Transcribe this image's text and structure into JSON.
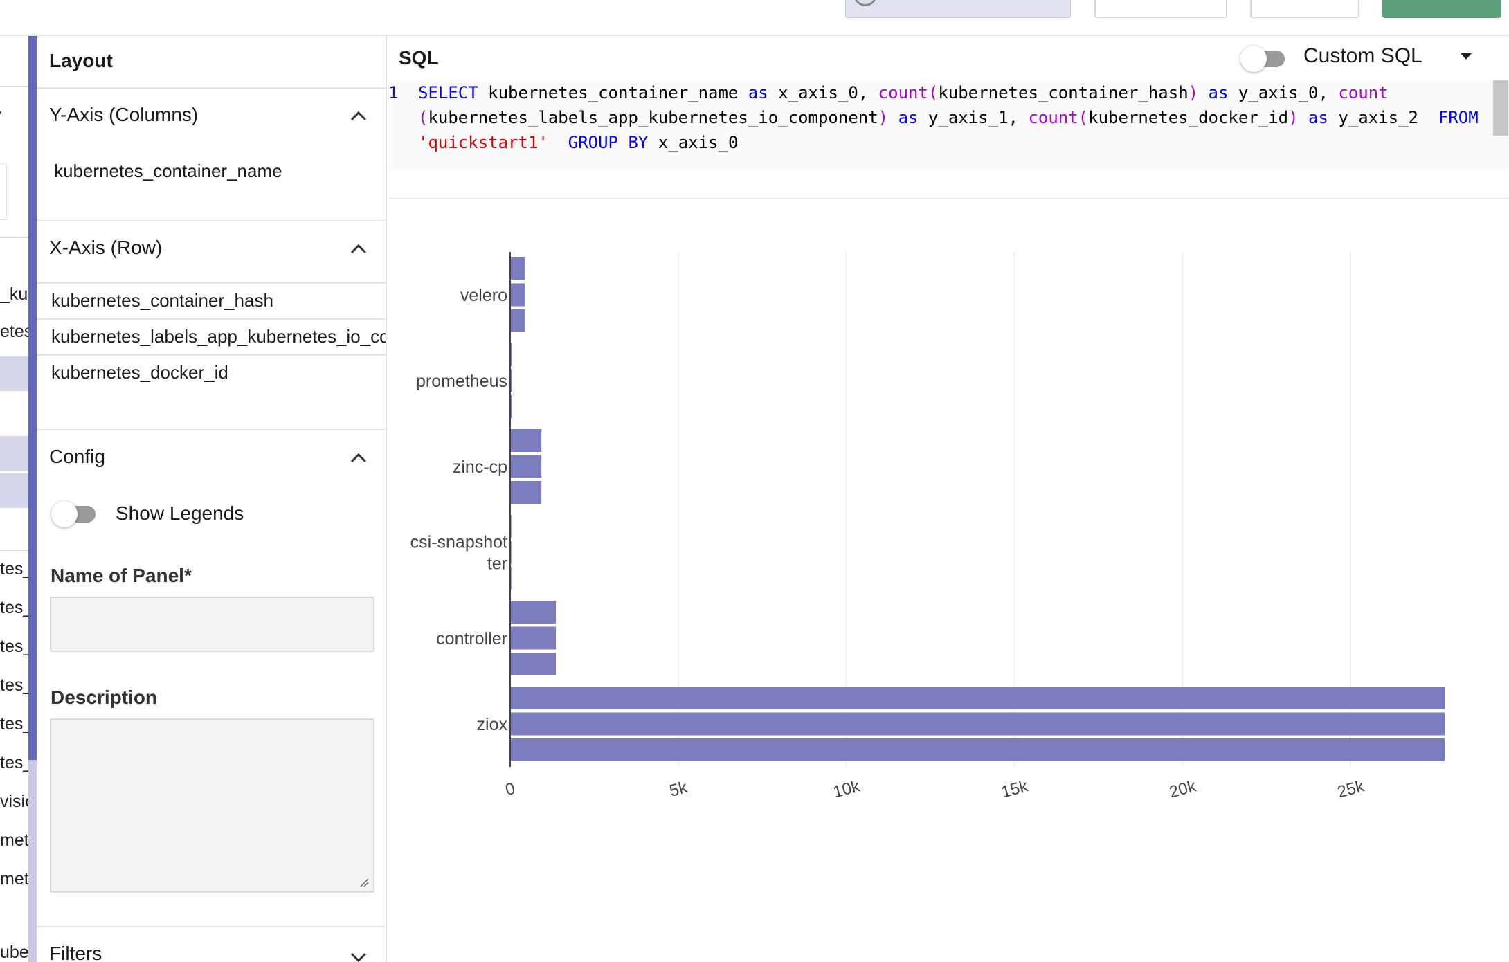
{
  "fields_column": {
    "items": [
      {
        "text": "_kul",
        "top": 0
      },
      {
        "text": "etes",
        "top": 0
      },
      {
        "text": "tes_",
        "top": 0
      },
      {
        "text": "tes_",
        "top": 0
      },
      {
        "text": "tes_",
        "top": 0
      },
      {
        "text": "tes_",
        "top": 0
      },
      {
        "text": "tes_",
        "top": 0
      },
      {
        "text": "tes_",
        "top": 0
      },
      {
        "text": "visio",
        "top": 0
      },
      {
        "text": "met",
        "top": 0
      },
      {
        "text": "met",
        "top": 0
      },
      {
        "text": "ube",
        "top": 0
      }
    ]
  },
  "layout_panel": {
    "title": "Layout",
    "y_axis": {
      "header": "Y-Axis (Columns)",
      "fields": [
        "kubernetes_container_name"
      ]
    },
    "x_axis": {
      "header": "X-Axis (Row)",
      "fields": [
        "kubernetes_container_hash",
        "kubernetes_labels_app_kubernetes_io_cc",
        "kubernetes_docker_id"
      ]
    },
    "config": {
      "header": "Config",
      "show_legends_label": "Show Legends",
      "name_label": "Name of Panel*",
      "name_value": "",
      "description_label": "Description",
      "description_value": ""
    },
    "filters": {
      "header": "Filters"
    }
  },
  "sql_editor": {
    "title": "SQL",
    "custom_sql_label": "Custom SQL",
    "line_number": "1",
    "code_lines": [
      [
        {
          "t": "kw",
          "v": "SELECT"
        },
        {
          "t": "",
          "v": " kubernetes_container_name "
        },
        {
          "t": "kw",
          "v": "as"
        },
        {
          "t": "",
          "v": " x_axis_0, "
        },
        {
          "t": "fn",
          "v": "count("
        },
        {
          "t": "",
          "v": "kubernetes_container_hash"
        },
        {
          "t": "fn",
          "v": ")"
        },
        {
          "t": "",
          "v": " "
        },
        {
          "t": "kw",
          "v": "as"
        },
        {
          "t": "",
          "v": " y_axis_0, "
        },
        {
          "t": "fn",
          "v": "count"
        }
      ],
      [
        {
          "t": "fn",
          "v": "("
        },
        {
          "t": "",
          "v": "kubernetes_labels_app_kubernetes_io_component"
        },
        {
          "t": "fn",
          "v": ")"
        },
        {
          "t": "",
          "v": " "
        },
        {
          "t": "kw",
          "v": "as"
        },
        {
          "t": "",
          "v": " y_axis_1, "
        },
        {
          "t": "fn",
          "v": "count("
        },
        {
          "t": "",
          "v": "kubernetes_docker_id"
        },
        {
          "t": "fn",
          "v": ")"
        },
        {
          "t": "",
          "v": " "
        },
        {
          "t": "kw",
          "v": "as"
        },
        {
          "t": "",
          "v": " y_axis_2  "
        },
        {
          "t": "kw",
          "v": "FROM"
        }
      ],
      [
        {
          "t": "str",
          "v": "'quickstart1'"
        },
        {
          "t": "",
          "v": "  "
        },
        {
          "t": "kw",
          "v": "GROUP BY"
        },
        {
          "t": "",
          "v": " x_axis_0"
        }
      ]
    ]
  },
  "colors": {
    "bar": "#7b7dbf",
    "accent": "#6468b8",
    "run_button": "#5ea07b"
  },
  "chart_data": {
    "type": "bar",
    "orientation": "horizontal",
    "categories": [
      "velero",
      "prometheus",
      "zinc-cp",
      "csi-snapshotter",
      "controller",
      "ziox"
    ],
    "category_labels": [
      [
        "velero"
      ],
      [
        "prometheus"
      ],
      [
        "zinc-cp"
      ],
      [
        "csi-snapshot",
        "ter"
      ],
      [
        "controller"
      ],
      [
        "ziox"
      ]
    ],
    "series": [
      {
        "values": [
          440,
          60,
          930,
          35,
          1360,
          27800
        ]
      },
      {
        "values": [
          440,
          60,
          930,
          35,
          1360,
          27800
        ]
      },
      {
        "values": [
          440,
          60,
          930,
          35,
          1360,
          27800
        ]
      }
    ],
    "xlim": [
      0,
      28000
    ],
    "xticks": [
      0,
      5000,
      10000,
      15000,
      20000,
      25000
    ],
    "xtick_labels": [
      "0",
      "5k",
      "10k",
      "15k",
      "20k",
      "25k"
    ],
    "grid": true,
    "legend": false
  }
}
